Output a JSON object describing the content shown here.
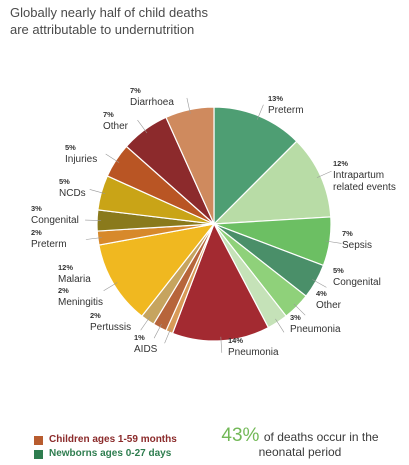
{
  "title_lines": [
    "Globally nearly half of child deaths",
    "are attributable to undernutrition"
  ],
  "legend": [
    {
      "label": "Children ages 1-59 months",
      "color": "#b85c2f"
    },
    {
      "label": "Newborns ages 0-27 days",
      "color": "#2e7d4f"
    }
  ],
  "stat": {
    "value": "43%",
    "text_line1": "of deaths occur in the",
    "text_line2": "neonatal period"
  },
  "chart_data": {
    "type": "pie",
    "title": "",
    "slices": [
      {
        "pct": "13%",
        "label_lines": [
          "Preterm"
        ],
        "value": 13,
        "color": "#4e9e73"
      },
      {
        "pct": "12%",
        "label_lines": [
          "Intrapartum",
          "related events"
        ],
        "value": 12,
        "color": "#b8dca6"
      },
      {
        "pct": "7%",
        "label_lines": [
          "Sepsis"
        ],
        "value": 7,
        "color": "#6cbf63"
      },
      {
        "pct": "5%",
        "label_lines": [
          "Congenital"
        ],
        "value": 5,
        "color": "#4a8f69"
      },
      {
        "pct": "4%",
        "label_lines": [
          "Other"
        ],
        "value": 4,
        "color": "#8fd17a"
      },
      {
        "pct": "3%",
        "label_lines": [
          "Pneumonia"
        ],
        "value": 3,
        "color": "#c5e2b8"
      },
      {
        "pct": "14%",
        "label_lines": [
          "Pneumonia"
        ],
        "value": 14,
        "color": "#a32a31"
      },
      {
        "pct": "1%",
        "label_lines": [
          "AIDS"
        ],
        "value": 1,
        "color": "#d89a58"
      },
      {
        "pct": "2%",
        "label_lines": [
          "Pertussis"
        ],
        "value": 2,
        "color": "#b7653b"
      },
      {
        "pct": "2%",
        "label_lines": [
          "Meningitis"
        ],
        "value": 2,
        "color": "#c6a45f"
      },
      {
        "pct": "12%",
        "label_lines": [
          "Malaria"
        ],
        "value": 12,
        "color": "#f0b820"
      },
      {
        "pct": "2%",
        "label_lines": [
          "Preterm"
        ],
        "value": 2,
        "color": "#d7892b"
      },
      {
        "pct": "3%",
        "label_lines": [
          "Congenital"
        ],
        "value": 3,
        "color": "#8a7a1c"
      },
      {
        "pct": "5%",
        "label_lines": [
          "NCDs"
        ],
        "value": 5,
        "color": "#c9a417"
      },
      {
        "pct": "5%",
        "label_lines": [
          "Injuries"
        ],
        "value": 5,
        "color": "#b95524"
      },
      {
        "pct": "7%",
        "label_lines": [
          "Other"
        ],
        "value": 7,
        "color": "#8c2a2c"
      },
      {
        "pct": "7%",
        "label_lines": [
          "Diarrhoea"
        ],
        "value": 7,
        "color": "#cf8a5e"
      }
    ]
  }
}
